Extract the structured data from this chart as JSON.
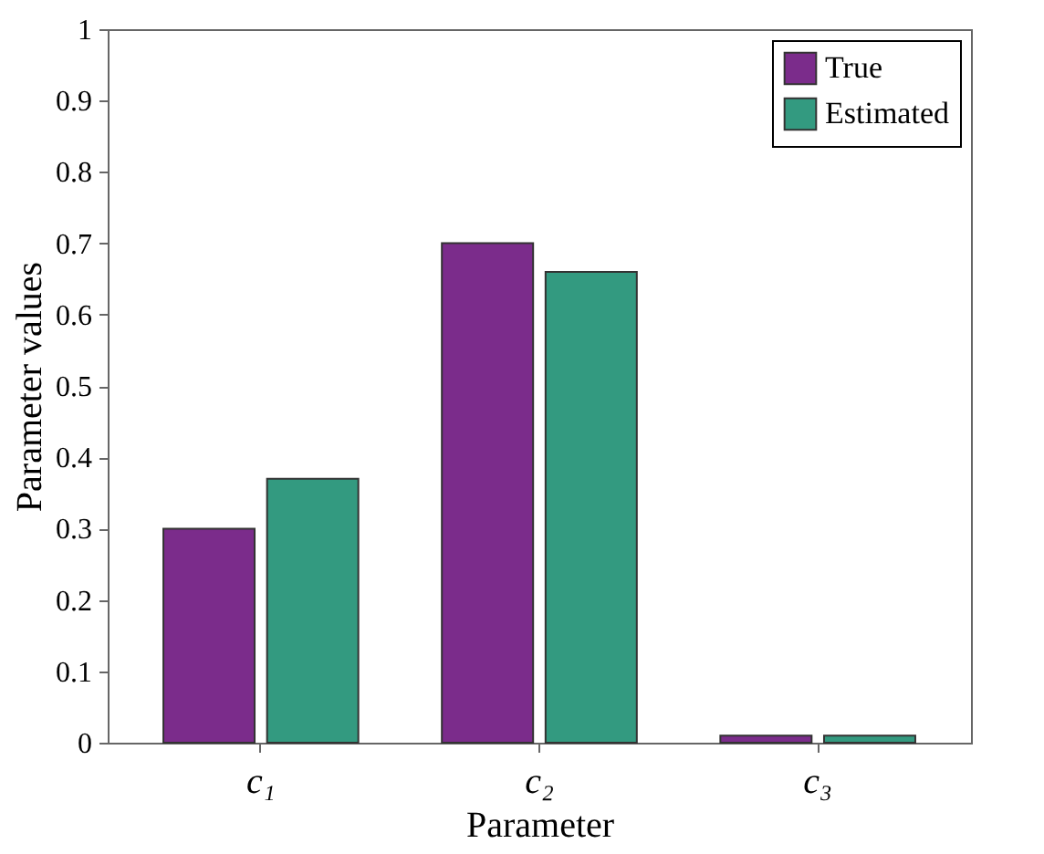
{
  "chart_data": {
    "type": "bar",
    "xlabel": "Parameter",
    "ylabel": "Parameter values",
    "categories": [
      "c₁",
      "c₂",
      "c₃"
    ],
    "series": [
      {
        "name": "True",
        "color": "#7b2c8b",
        "values": [
          0.3,
          0.7,
          0.01
        ]
      },
      {
        "name": "Estimated",
        "color": "#339a80",
        "values": [
          0.37,
          0.66,
          0.01
        ]
      }
    ],
    "ylim": [
      0,
      1
    ],
    "yticks": [
      0,
      0.1,
      0.2,
      0.3,
      0.4,
      0.5,
      0.6,
      0.7,
      0.8,
      0.9,
      1
    ],
    "grid": false,
    "legend": "top right"
  }
}
